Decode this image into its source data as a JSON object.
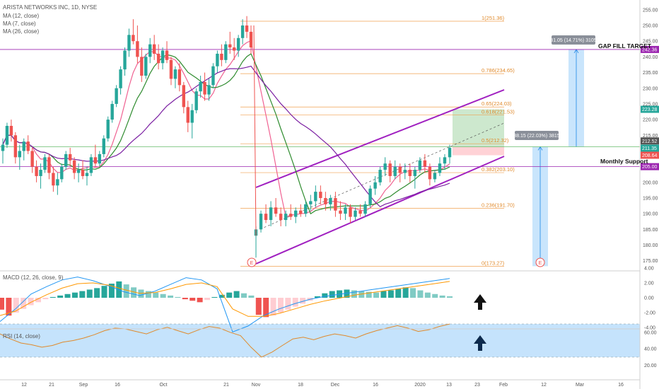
{
  "colors": {
    "up": "#26a69a",
    "down": "#ef5350",
    "ma12": "#2e8b2e",
    "ma7": "#f06292",
    "ma26": "#7b1fa2",
    "fib": "#f0a050",
    "channel": "#a020c0",
    "macd": "#2196f3",
    "signal": "#ff9800",
    "rsi": "#e08a2c",
    "rsiband": "#bbdefb",
    "projection": "#bbdefb",
    "target_up": "#c8e6c9",
    "stop": "#ffcdd2"
  },
  "legend": {
    "title": "ARISTA NETWORKS INC, 1D, NYSE",
    "ma1": "MA (12, close)",
    "ma2": "MA (7, close)",
    "ma3": "MA (26, close)"
  },
  "annotations": {
    "gap_fill": "GAP FILL TARGET",
    "monthly_support": "Monthly Support",
    "measure_1": "31.05 (14.71%) 3105",
    "measure_2": "38.15 (22.03%) 3815",
    "earnings_1": "E",
    "earnings_2": "E",
    "up_arrow_macd": "up-arrow-icon",
    "up_arrow_rsi": "up-arrow-icon"
  },
  "price_tags": [
    {
      "value": "242.36",
      "color": "#9c27b0"
    },
    {
      "value": "223.28",
      "color": "#26a69a"
    },
    {
      "value": "212.52",
      "color": "#555555"
    },
    {
      "value": "211.35",
      "color": "#26a69a"
    },
    {
      "value": "208.64",
      "color": "#ef5350"
    },
    {
      "value": "205.00",
      "color": "#9c27b0"
    }
  ],
  "price_ticks": [
    "255.00",
    "250.00",
    "245.00",
    "240.00",
    "235.00",
    "230.00",
    "225.00",
    "220.00",
    "215.00",
    "210.00",
    "205.00",
    "200.00",
    "195.00",
    "190.00",
    "185.00",
    "180.00",
    "175.00"
  ],
  "macd_ticks": [
    "4.00",
    "2.00",
    "0.00",
    "-2.00",
    "-4.00"
  ],
  "rsi_ticks": [
    "60.00",
    "40.00",
    "20.00"
  ],
  "x_ticks": [
    {
      "label": "12",
      "x": 34
    },
    {
      "label": "21",
      "x": 73
    },
    {
      "label": "Sep",
      "x": 118
    },
    {
      "label": "16",
      "x": 166
    },
    {
      "label": "Oct",
      "x": 231
    },
    {
      "label": "21",
      "x": 320
    },
    {
      "label": "Nov",
      "x": 362
    },
    {
      "label": "18",
      "x": 425
    },
    {
      "label": "Dec",
      "x": 474
    },
    {
      "label": "16",
      "x": 531
    },
    {
      "label": "2020",
      "x": 594
    },
    {
      "label": "13",
      "x": 635
    },
    {
      "label": "23",
      "x": 675
    },
    {
      "label": "Feb",
      "x": 712
    },
    {
      "label": "12",
      "x": 769
    },
    {
      "label": "Mar",
      "x": 820
    },
    {
      "label": "16",
      "x": 878
    }
  ],
  "macd_panel": {
    "label": "MACD (12, 26, close, 9)"
  },
  "rsi_panel": {
    "label": "RSI (14, close)"
  },
  "chart_data": {
    "type": "candlestick",
    "title": "ARISTA NETWORKS INC, 1D, NYSE",
    "ylim": [
      172,
      257
    ],
    "fib_levels": [
      {
        "ratio": "1",
        "price": 251.36,
        "label": "1(251.36)"
      },
      {
        "ratio": "0.786",
        "price": 234.65,
        "label": "0.786(234.65)"
      },
      {
        "ratio": "0.65",
        "price": 224.03,
        "label": "0.65(224.03)"
      },
      {
        "ratio": "0.618",
        "price": 221.53,
        "label": "0.618(221.53)"
      },
      {
        "ratio": "0.5",
        "price": 212.32,
        "label": "0.5(212.32)"
      },
      {
        "ratio": "0.382",
        "price": 203.1,
        "label": "0.382(203.10)"
      },
      {
        "ratio": "0.236",
        "price": 191.7,
        "label": "0.236(191.70)"
      },
      {
        "ratio": "0",
        "price": 173.27,
        "label": "0(173.27)"
      }
    ],
    "horizontal_levels": {
      "gap_fill": 242.36,
      "monthly_support": 205.0,
      "green_line": 211.35
    },
    "candles_phase1": [
      [
        210,
        214,
        206,
        212
      ],
      [
        212,
        219,
        211,
        218
      ],
      [
        218,
        220,
        213,
        215
      ],
      [
        215,
        216,
        206,
        208
      ],
      [
        208,
        212,
        204,
        210
      ],
      [
        210,
        214,
        207,
        213
      ],
      [
        213,
        215,
        209,
        210
      ],
      [
        210,
        211,
        203,
        205
      ],
      [
        205,
        207,
        200,
        202
      ],
      [
        202,
        206,
        198,
        204
      ],
      [
        204,
        209,
        203,
        208
      ],
      [
        208,
        209,
        201,
        203
      ],
      [
        203,
        205,
        197,
        199
      ],
      [
        199,
        203,
        196,
        201
      ],
      [
        201,
        206,
        200,
        205
      ],
      [
        205,
        210,
        204,
        209
      ],
      [
        209,
        211,
        205,
        207
      ],
      [
        207,
        208,
        201,
        203
      ],
      [
        203,
        206,
        200,
        204
      ],
      [
        204,
        207,
        201,
        202
      ],
      [
        202,
        205,
        199,
        203
      ],
      [
        203,
        209,
        202,
        208
      ],
      [
        208,
        212,
        205,
        206
      ],
      [
        206,
        210,
        205,
        209
      ],
      [
        209,
        215,
        208,
        214
      ],
      [
        214,
        221,
        213,
        220
      ],
      [
        220,
        226,
        219,
        225
      ],
      [
        225,
        231,
        224,
        230
      ],
      [
        230,
        237,
        228,
        236
      ],
      [
        236,
        243,
        234,
        242
      ],
      [
        242,
        249,
        240,
        247
      ],
      [
        247,
        252,
        244,
        245
      ],
      [
        245,
        250,
        238,
        240
      ],
      [
        240,
        243,
        232,
        234
      ],
      [
        234,
        241,
        233,
        240
      ],
      [
        240,
        246,
        238,
        244
      ],
      [
        244,
        247,
        239,
        241
      ],
      [
        241,
        244,
        236,
        238
      ],
      [
        238,
        243,
        236,
        242
      ],
      [
        242,
        245,
        238,
        239
      ],
      [
        239,
        240,
        231,
        233
      ],
      [
        233,
        237,
        230,
        236
      ],
      [
        236,
        238,
        229,
        231
      ],
      [
        231,
        232,
        222,
        224
      ],
      [
        224,
        226,
        216,
        219
      ],
      [
        219,
        225,
        214,
        223
      ],
      [
        223,
        230,
        222,
        229
      ],
      [
        229,
        234,
        227,
        232
      ],
      [
        232,
        235,
        226,
        228
      ],
      [
        228,
        233,
        226,
        231
      ],
      [
        231,
        238,
        230,
        237
      ],
      [
        237,
        242,
        235,
        241
      ],
      [
        241,
        244,
        237,
        239
      ],
      [
        239,
        245,
        238,
        244
      ],
      [
        244,
        248,
        241,
        243
      ],
      [
        243,
        246,
        239,
        242
      ],
      [
        242,
        247,
        240,
        246
      ],
      [
        246,
        252,
        244,
        250
      ],
      [
        250,
        253,
        246,
        248
      ],
      [
        248,
        250,
        241,
        243
      ]
    ],
    "candles_phase2": [
      [
        183,
        186,
        176,
        185
      ],
      [
        185,
        191,
        184,
        190
      ],
      [
        190,
        193,
        187,
        188
      ],
      [
        188,
        194,
        186,
        192
      ],
      [
        192,
        195,
        189,
        190
      ],
      [
        190,
        192,
        186,
        188
      ],
      [
        188,
        191,
        186,
        190
      ],
      [
        190,
        193,
        188,
        189
      ],
      [
        189,
        192,
        187,
        191
      ],
      [
        191,
        193,
        189,
        190
      ],
      [
        190,
        194,
        189,
        193
      ],
      [
        193,
        196,
        191,
        194
      ],
      [
        194,
        199,
        192,
        197
      ],
      [
        197,
        199,
        193,
        195
      ],
      [
        195,
        197,
        191,
        193
      ],
      [
        193,
        196,
        191,
        195
      ],
      [
        195,
        197,
        189,
        191
      ],
      [
        191,
        194,
        188,
        190
      ],
      [
        190,
        193,
        188,
        192
      ],
      [
        192,
        193,
        187,
        189
      ],
      [
        189,
        192,
        188,
        191
      ],
      [
        191,
        193,
        189,
        190
      ],
      [
        190,
        194,
        189,
        193
      ],
      [
        193,
        199,
        192,
        198
      ],
      [
        198,
        202,
        196,
        200
      ],
      [
        200,
        205,
        199,
        204
      ],
      [
        204,
        208,
        202,
        206
      ],
      [
        206,
        207,
        200,
        202
      ],
      [
        202,
        207,
        201,
        205
      ],
      [
        205,
        206,
        200,
        203
      ],
      [
        203,
        206,
        201,
        204
      ],
      [
        204,
        206,
        200,
        202
      ],
      [
        202,
        205,
        198,
        204
      ],
      [
        204,
        208,
        203,
        207
      ],
      [
        207,
        209,
        203,
        205
      ],
      [
        205,
        206,
        199,
        201
      ],
      [
        201,
        204,
        200,
        203
      ],
      [
        203,
        208,
        202,
        206
      ],
      [
        206,
        209,
        204,
        208
      ],
      [
        208,
        212,
        206,
        211
      ]
    ],
    "channel_upper": [
      [
        362,
        265
      ],
      [
        713,
        127
      ]
    ],
    "channel_lower": [
      [
        362,
        373
      ],
      [
        713,
        221
      ]
    ],
    "channel_mid": [
      [
        368,
        324
      ],
      [
        713,
        174
      ]
    ],
    "macd_hist": [
      -1.6,
      -2.4,
      -2.0,
      -1.5,
      -1.0,
      -0.6,
      -0.2,
      0.1,
      0.3,
      0.5,
      0.7,
      0.9,
      1.1,
      1.3,
      1.6,
      1.9,
      2.2,
      1.8,
      1.4,
      1.1,
      0.9,
      0.7,
      0.5,
      0.3,
      0.1,
      -0.2,
      -0.4,
      -0.6,
      -0.3,
      0.1,
      0.4,
      0.7,
      0.9,
      0.6,
      0.3,
      -2.3,
      -2.6,
      -2.4,
      -2.0,
      -1.6,
      -1.2,
      -0.8,
      -0.4,
      0.2,
      0.6,
      0.9,
      1.0,
      1.1,
      1.0,
      0.9,
      0.8,
      0.7,
      0.9,
      1.0,
      1.2,
      1.4,
      1.3,
      1.0,
      0.7,
      0.5,
      0.3,
      0.2
    ],
    "macd_line": [
      -3.2,
      -1.5,
      0.5,
      1.5,
      2.4,
      2.8,
      2.3,
      1.6,
      0.8,
      0.3,
      0.9,
      1.8,
      2.7,
      2.4,
      1.2,
      -4.6,
      -3.8,
      -2.4,
      -1.5,
      -0.8,
      -0.2,
      0.2,
      0.5,
      0.8,
      1.1,
      1.4,
      1.7,
      2.0,
      2.3,
      2.6
    ],
    "signal_line": [
      -2.4,
      -1.8,
      -0.6,
      0.4,
      1.3,
      1.9,
      2.0,
      1.7,
      1.1,
      0.6,
      0.7,
      1.2,
      1.8,
      2.0,
      1.5,
      -1.5,
      -2.5,
      -2.5,
      -2.1,
      -1.5,
      -0.9,
      -0.4,
      0.0,
      0.4,
      0.7,
      1.0,
      1.3,
      1.6,
      1.9,
      2.2
    ],
    "rsi": [
      58,
      52,
      47,
      45,
      42,
      44,
      48,
      50,
      53,
      57,
      62,
      65,
      64,
      61,
      58,
      63,
      66,
      62,
      58,
      63,
      67,
      65,
      60,
      56,
      42,
      30,
      36,
      44,
      52,
      54,
      51,
      55,
      58,
      56,
      53,
      58,
      62,
      65,
      68,
      65,
      61,
      63,
      67,
      70
    ]
  }
}
